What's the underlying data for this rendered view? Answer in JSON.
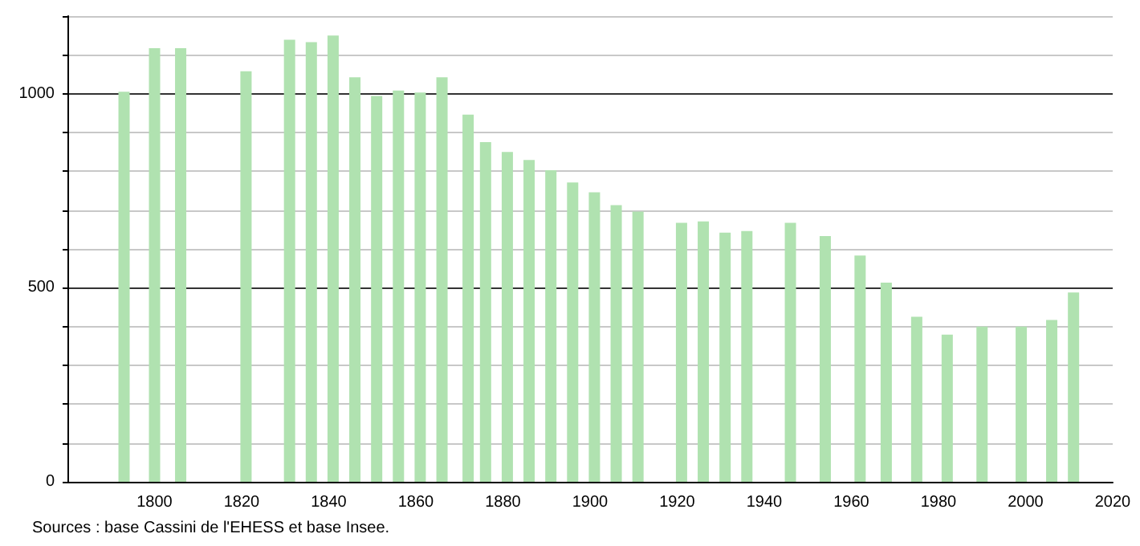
{
  "chart_data": {
    "type": "bar",
    "color": "#b0e2b0",
    "x": [
      1793,
      1800,
      1806,
      1821,
      1831,
      1836,
      1841,
      1846,
      1851,
      1856,
      1861,
      1866,
      1872,
      1876,
      1881,
      1886,
      1891,
      1896,
      1901,
      1906,
      1911,
      1921,
      1926,
      1931,
      1936,
      1946,
      1954,
      1962,
      1968,
      1975,
      1982,
      1990,
      1999,
      2006,
      2011
    ],
    "values": [
      1005,
      1117,
      1117,
      1058,
      1139,
      1133,
      1150,
      1042,
      994,
      1008,
      1003,
      1042,
      946,
      875,
      850,
      829,
      803,
      771,
      746,
      713,
      696,
      667,
      671,
      642,
      646,
      667,
      633,
      583,
      513,
      425,
      379,
      400,
      400,
      417,
      488
    ],
    "xlim": [
      1780,
      2020
    ],
    "xticks": [
      1800,
      1820,
      1840,
      1860,
      1880,
      1900,
      1920,
      1940,
      1960,
      1980,
      2000,
      2020
    ],
    "ylim": [
      0,
      1200
    ],
    "yticks": [
      0,
      {
        "value": 100,
        "label": null
      },
      {
        "value": 200,
        "label": null
      },
      {
        "value": 300,
        "label": null
      },
      {
        "value": 400,
        "label": null
      },
      500,
      {
        "value": 600,
        "label": null
      },
      {
        "value": 700,
        "label": null
      },
      {
        "value": 800,
        "label": null
      },
      {
        "value": 900,
        "label": null
      },
      1000,
      {
        "value": 1100,
        "label": null
      },
      {
        "value": 1200,
        "label": null
      }
    ],
    "grid": "y",
    "annotations": [
      "Sources : base Cassini de l'EHESS et base Insee."
    ]
  }
}
